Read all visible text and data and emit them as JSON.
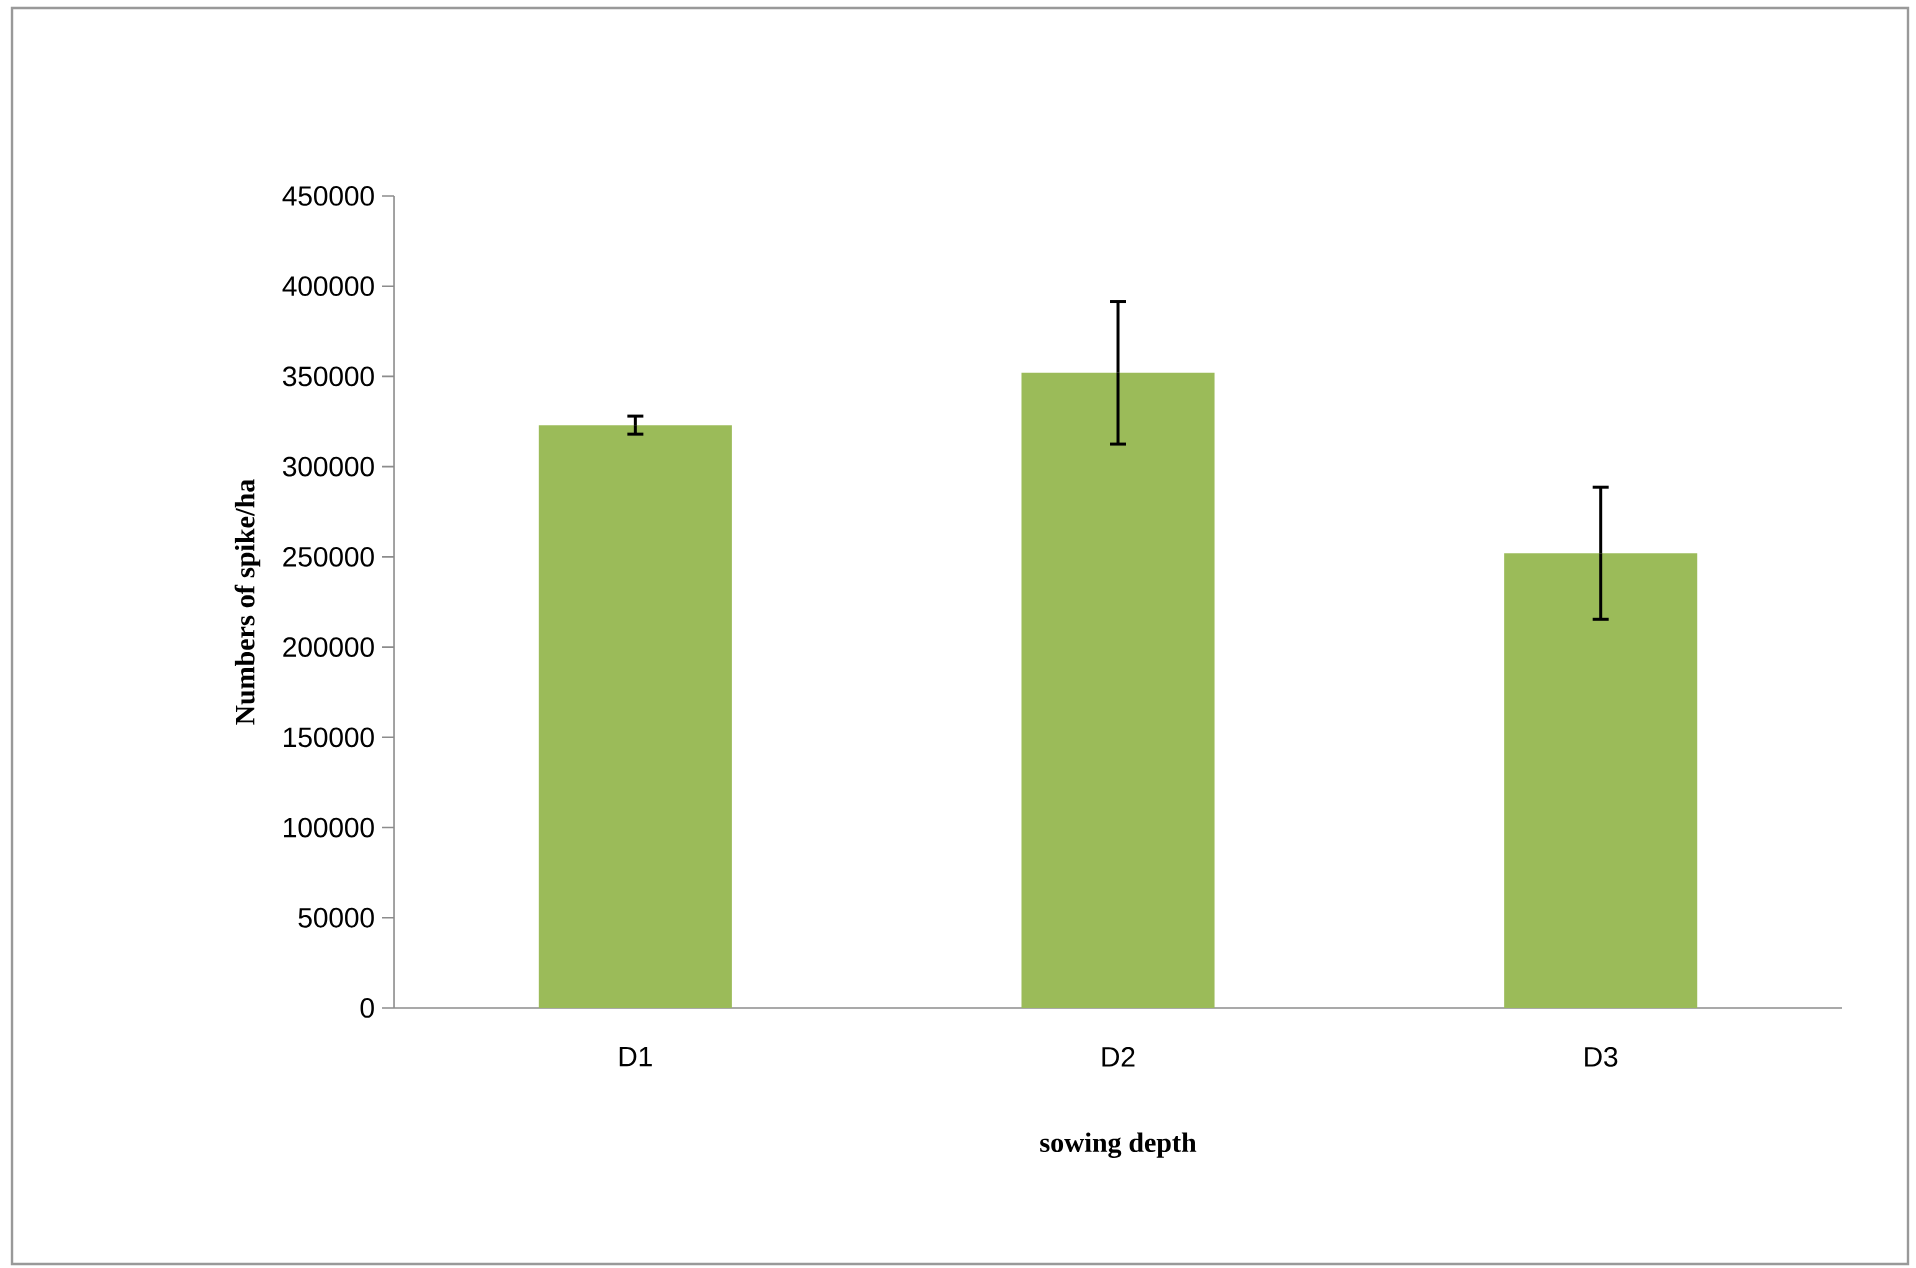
{
  "chart_data": {
    "type": "bar",
    "xlabel": "sowing depth",
    "ylabel": "Numbers of spike/ha",
    "categories": [
      "D1",
      "D2",
      "D3"
    ],
    "values": [
      323000,
      352000,
      252000
    ],
    "errors": [
      5000,
      39500,
      36600
    ],
    "color": "#9bbb59",
    "ylim": [
      0,
      450000
    ],
    "yticks": [
      0,
      50000,
      100000,
      150000,
      200000,
      250000,
      300000,
      350000,
      400000,
      450000
    ],
    "grid": false
  }
}
